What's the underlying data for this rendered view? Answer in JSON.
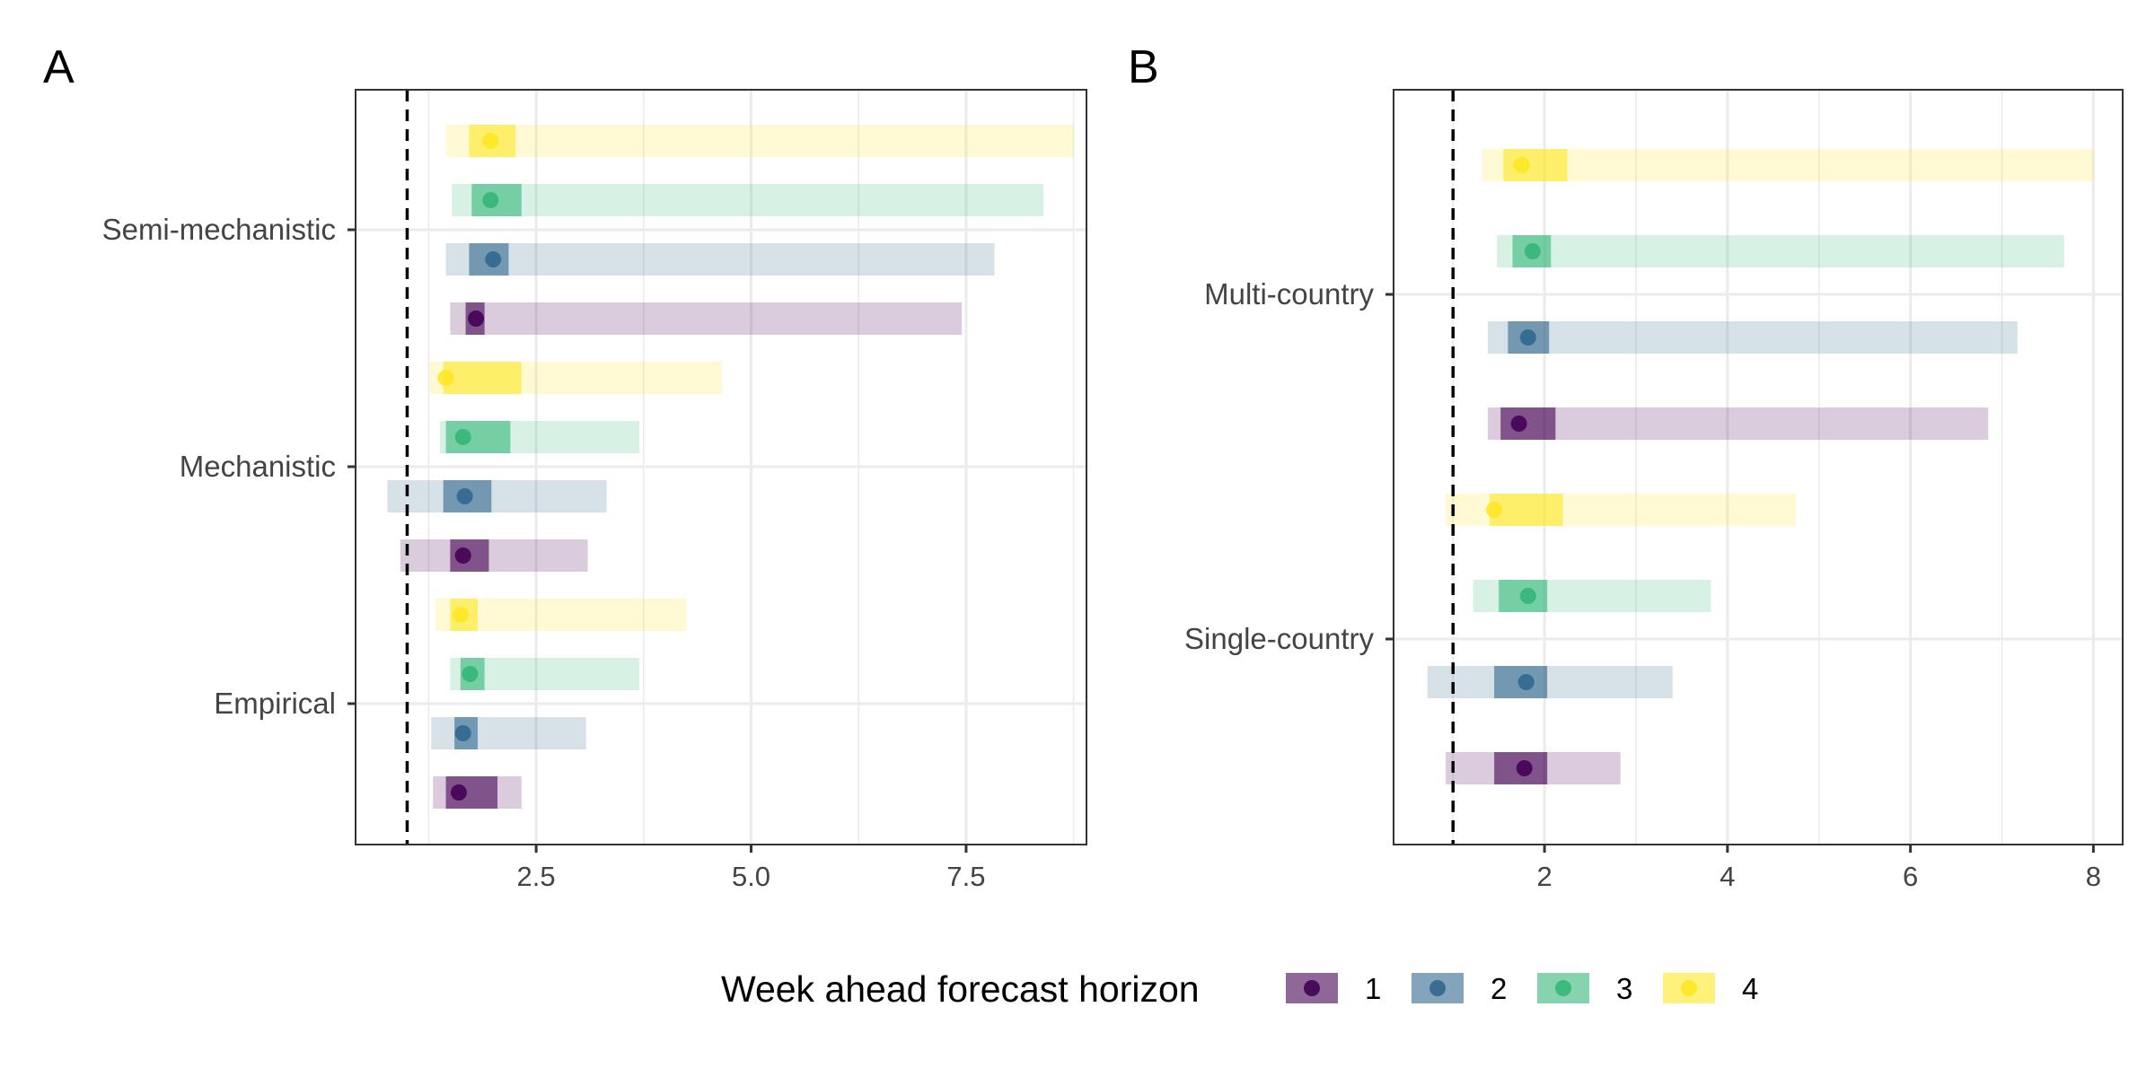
{
  "legend": {
    "title": "Week ahead forecast horizon",
    "items": [
      {
        "label": "1",
        "color": "#440154"
      },
      {
        "label": "2",
        "color": "#31688e"
      },
      {
        "label": "3",
        "color": "#35b779"
      },
      {
        "label": "4",
        "color": "#fde725"
      }
    ]
  },
  "chart_data": [
    {
      "panel": "A",
      "type": "interval",
      "orientation": "horizontal",
      "xlim": [
        0.4,
        8.9
      ],
      "x_ticks": [
        2.5,
        5.0,
        7.5
      ],
      "x_tick_labels": [
        "2.5",
        "5.0",
        "7.5"
      ],
      "reference_line": 1,
      "grid": true,
      "categories": [
        "Semi-mechanistic",
        "Mechanistic",
        "Empirical"
      ],
      "groups": [
        {
          "category": "Semi-mechanistic",
          "horizon": "4",
          "median": 1.97,
          "inner": [
            1.72,
            2.26
          ],
          "outer": [
            1.45,
            8.75
          ]
        },
        {
          "category": "Semi-mechanistic",
          "horizon": "3",
          "median": 1.97,
          "inner": [
            1.75,
            2.33
          ],
          "outer": [
            1.52,
            8.4
          ]
        },
        {
          "category": "Semi-mechanistic",
          "horizon": "2",
          "median": 2.0,
          "inner": [
            1.72,
            2.18
          ],
          "outer": [
            1.45,
            7.83
          ]
        },
        {
          "category": "Semi-mechanistic",
          "horizon": "1",
          "median": 1.8,
          "inner": [
            1.68,
            1.9
          ],
          "outer": [
            1.5,
            7.45
          ]
        },
        {
          "category": "Mechanistic",
          "horizon": "4",
          "median": 1.45,
          "inner": [
            1.42,
            2.33
          ],
          "outer": [
            1.26,
            4.66
          ]
        },
        {
          "category": "Mechanistic",
          "horizon": "3",
          "median": 1.65,
          "inner": [
            1.45,
            2.2
          ],
          "outer": [
            1.38,
            3.7
          ]
        },
        {
          "category": "Mechanistic",
          "horizon": "2",
          "median": 1.67,
          "inner": [
            1.42,
            1.98
          ],
          "outer": [
            0.77,
            3.32
          ]
        },
        {
          "category": "Mechanistic",
          "horizon": "1",
          "median": 1.65,
          "inner": [
            1.5,
            1.95
          ],
          "outer": [
            0.92,
            3.1
          ]
        },
        {
          "category": "Empirical",
          "horizon": "4",
          "median": 1.62,
          "inner": [
            1.5,
            1.82
          ],
          "outer": [
            1.33,
            4.25
          ]
        },
        {
          "category": "Empirical",
          "horizon": "3",
          "median": 1.73,
          "inner": [
            1.62,
            1.9
          ],
          "outer": [
            1.5,
            3.7
          ]
        },
        {
          "category": "Empirical",
          "horizon": "2",
          "median": 1.65,
          "inner": [
            1.55,
            1.82
          ],
          "outer": [
            1.28,
            3.08
          ]
        },
        {
          "category": "Empirical",
          "horizon": "1",
          "median": 1.6,
          "inner": [
            1.45,
            2.05
          ],
          "outer": [
            1.3,
            2.33
          ]
        }
      ]
    },
    {
      "panel": "B",
      "type": "interval",
      "orientation": "horizontal",
      "xlim": [
        0.35,
        8.32
      ],
      "x_ticks": [
        2,
        4,
        6,
        8
      ],
      "x_tick_labels": [
        "2",
        "4",
        "6",
        "8"
      ],
      "reference_line": 1,
      "grid": true,
      "categories": [
        "Multi-country",
        "Single-country"
      ],
      "groups": [
        {
          "category": "Multi-country",
          "horizon": "4",
          "median": 1.75,
          "inner": [
            1.55,
            2.25
          ],
          "outer": [
            1.32,
            8.0
          ]
        },
        {
          "category": "Multi-country",
          "horizon": "3",
          "median": 1.87,
          "inner": [
            1.65,
            2.07
          ],
          "outer": [
            1.48,
            7.68
          ]
        },
        {
          "category": "Multi-country",
          "horizon": "2",
          "median": 1.82,
          "inner": [
            1.6,
            2.05
          ],
          "outer": [
            1.38,
            7.17
          ]
        },
        {
          "category": "Multi-country",
          "horizon": "1",
          "median": 1.72,
          "inner": [
            1.52,
            2.12
          ],
          "outer": [
            1.38,
            6.85
          ]
        },
        {
          "category": "Single-country",
          "horizon": "4",
          "median": 1.45,
          "inner": [
            1.4,
            2.2
          ],
          "outer": [
            0.92,
            4.75
          ]
        },
        {
          "category": "Single-country",
          "horizon": "3",
          "median": 1.82,
          "inner": [
            1.5,
            2.03
          ],
          "outer": [
            1.22,
            3.82
          ]
        },
        {
          "category": "Single-country",
          "horizon": "2",
          "median": 1.8,
          "inner": [
            1.45,
            2.03
          ],
          "outer": [
            0.72,
            3.4
          ]
        },
        {
          "category": "Single-country",
          "horizon": "1",
          "median": 1.78,
          "inner": [
            1.45,
            2.03
          ],
          "outer": [
            0.92,
            2.83
          ]
        }
      ]
    }
  ]
}
